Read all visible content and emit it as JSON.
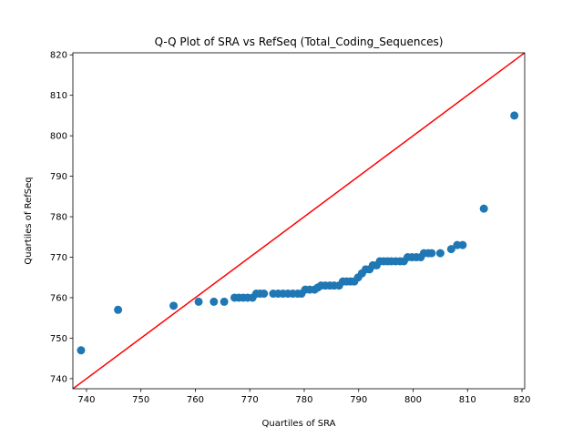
{
  "chart_data": {
    "type": "scatter",
    "title": "Q-Q Plot of SRA vs RefSeq (Total_Coding_Sequences)",
    "xlabel": "Quartiles of SRA",
    "ylabel": "Quartiles of RefSeq",
    "xlim": [
      737.5,
      820.5
    ],
    "ylim": [
      737.5,
      820.5
    ],
    "xticks": [
      740,
      750,
      760,
      770,
      780,
      790,
      800,
      810,
      820
    ],
    "yticks": [
      740,
      750,
      760,
      770,
      780,
      790,
      800,
      810,
      820
    ],
    "grid": false,
    "reference_line": {
      "points": [
        [
          737.5,
          737.5
        ],
        [
          820.5,
          820.5
        ]
      ],
      "color": "#ff0000"
    },
    "marker_color": "#1f77b4",
    "points": [
      [
        739.0,
        747.0
      ],
      [
        745.8,
        757.0
      ],
      [
        756.0,
        758.0
      ],
      [
        760.6,
        759.0
      ],
      [
        763.4,
        759.0
      ],
      [
        765.3,
        759.0
      ],
      [
        767.2,
        760.0
      ],
      [
        768.0,
        760.0
      ],
      [
        768.8,
        760.0
      ],
      [
        769.6,
        760.0
      ],
      [
        770.5,
        760.0
      ],
      [
        771.2,
        761.0
      ],
      [
        771.9,
        761.0
      ],
      [
        772.6,
        761.0
      ],
      [
        774.3,
        761.0
      ],
      [
        775.2,
        761.0
      ],
      [
        776.1,
        761.0
      ],
      [
        777.0,
        761.0
      ],
      [
        777.9,
        761.0
      ],
      [
        778.8,
        761.0
      ],
      [
        779.5,
        761.0
      ],
      [
        780.2,
        762.0
      ],
      [
        781.0,
        762.0
      ],
      [
        781.9,
        762.0
      ],
      [
        782.5,
        762.5
      ],
      [
        783.1,
        763.0
      ],
      [
        783.9,
        763.0
      ],
      [
        784.7,
        763.0
      ],
      [
        785.5,
        763.0
      ],
      [
        786.4,
        763.0
      ],
      [
        787.1,
        764.0
      ],
      [
        787.8,
        764.0
      ],
      [
        788.5,
        764.0
      ],
      [
        789.2,
        764.0
      ],
      [
        789.9,
        765.0
      ],
      [
        790.6,
        766.0
      ],
      [
        791.3,
        767.0
      ],
      [
        792.0,
        767.0
      ],
      [
        792.6,
        768.0
      ],
      [
        793.3,
        768.0
      ],
      [
        793.9,
        769.0
      ],
      [
        794.6,
        769.0
      ],
      [
        795.3,
        769.0
      ],
      [
        796.0,
        769.0
      ],
      [
        796.8,
        769.0
      ],
      [
        797.6,
        769.0
      ],
      [
        798.3,
        769.0
      ],
      [
        799.0,
        770.0
      ],
      [
        799.8,
        770.0
      ],
      [
        800.6,
        770.0
      ],
      [
        801.4,
        770.0
      ],
      [
        802.0,
        771.0
      ],
      [
        802.8,
        771.0
      ],
      [
        803.4,
        771.0
      ],
      [
        805.0,
        771.0
      ],
      [
        807.0,
        772.0
      ],
      [
        808.1,
        773.0
      ],
      [
        809.1,
        773.0
      ],
      [
        813.0,
        782.0
      ],
      [
        818.6,
        805.0
      ]
    ]
  }
}
